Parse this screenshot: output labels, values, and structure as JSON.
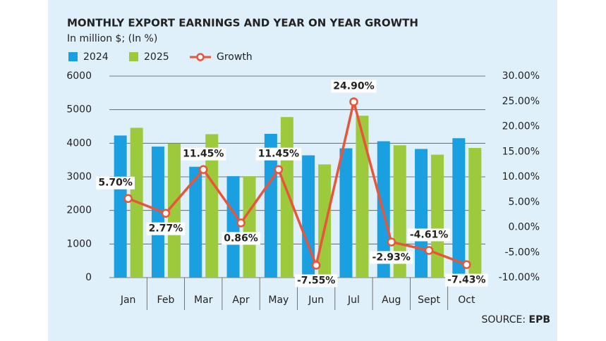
{
  "chart_data": {
    "type": "bar-line",
    "title": "MONTHLY EXPORT EARNINGS AND YEAR ON YEAR GROWTH",
    "subtitle": "In million $; (In %)",
    "categories": [
      "Jan",
      "Feb",
      "Mar",
      "Apr",
      "May",
      "Jun",
      "Jul",
      "Aug",
      "Sept",
      "Oct"
    ],
    "series": [
      {
        "name": "2024",
        "type": "bar",
        "color": "#1a9fe0",
        "values": [
          4230,
          3900,
          3300,
          3020,
          4280,
          3640,
          3850,
          4060,
          3830,
          4150
        ]
      },
      {
        "name": "2025",
        "type": "bar",
        "color": "#9cca3c",
        "values": [
          4460,
          3990,
          4270,
          3020,
          4780,
          3370,
          4820,
          3940,
          3660,
          3860
        ]
      },
      {
        "name": "Growth",
        "type": "line",
        "axis": "y2",
        "color": "#e8553a",
        "values": [
          5.7,
          2.77,
          11.45,
          0.86,
          11.45,
          -7.55,
          24.9,
          -2.93,
          -4.61,
          -7.43
        ],
        "value_labels": [
          "5.70%",
          "2.77%",
          "11.45%",
          "0.86%",
          "11.45%",
          "-7.55%",
          "24.90%",
          "-2.93%",
          "-4.61%",
          "-7.43%"
        ]
      }
    ],
    "ylim": [
      0,
      6000
    ],
    "yticks": [
      0,
      1000,
      2000,
      3000,
      4000,
      5000,
      6000
    ],
    "y2lim": [
      -10,
      30
    ],
    "y2ticks": [
      {
        "value": -10,
        "label": "-10.00%"
      },
      {
        "value": -5,
        "label": "-5.00%"
      },
      {
        "value": 0,
        "label": "0.00%"
      },
      {
        "value": 5,
        "label": "5.00%"
      },
      {
        "value": 10,
        "label": "10.00%"
      },
      {
        "value": 15,
        "label": "15.00%"
      },
      {
        "value": 20,
        "label": "20.00%"
      },
      {
        "value": 25,
        "label": "25.00%"
      },
      {
        "value": 30,
        "label": "30.00%"
      }
    ],
    "grid": true,
    "source_label": "SOURCE:",
    "source": "EPB"
  }
}
